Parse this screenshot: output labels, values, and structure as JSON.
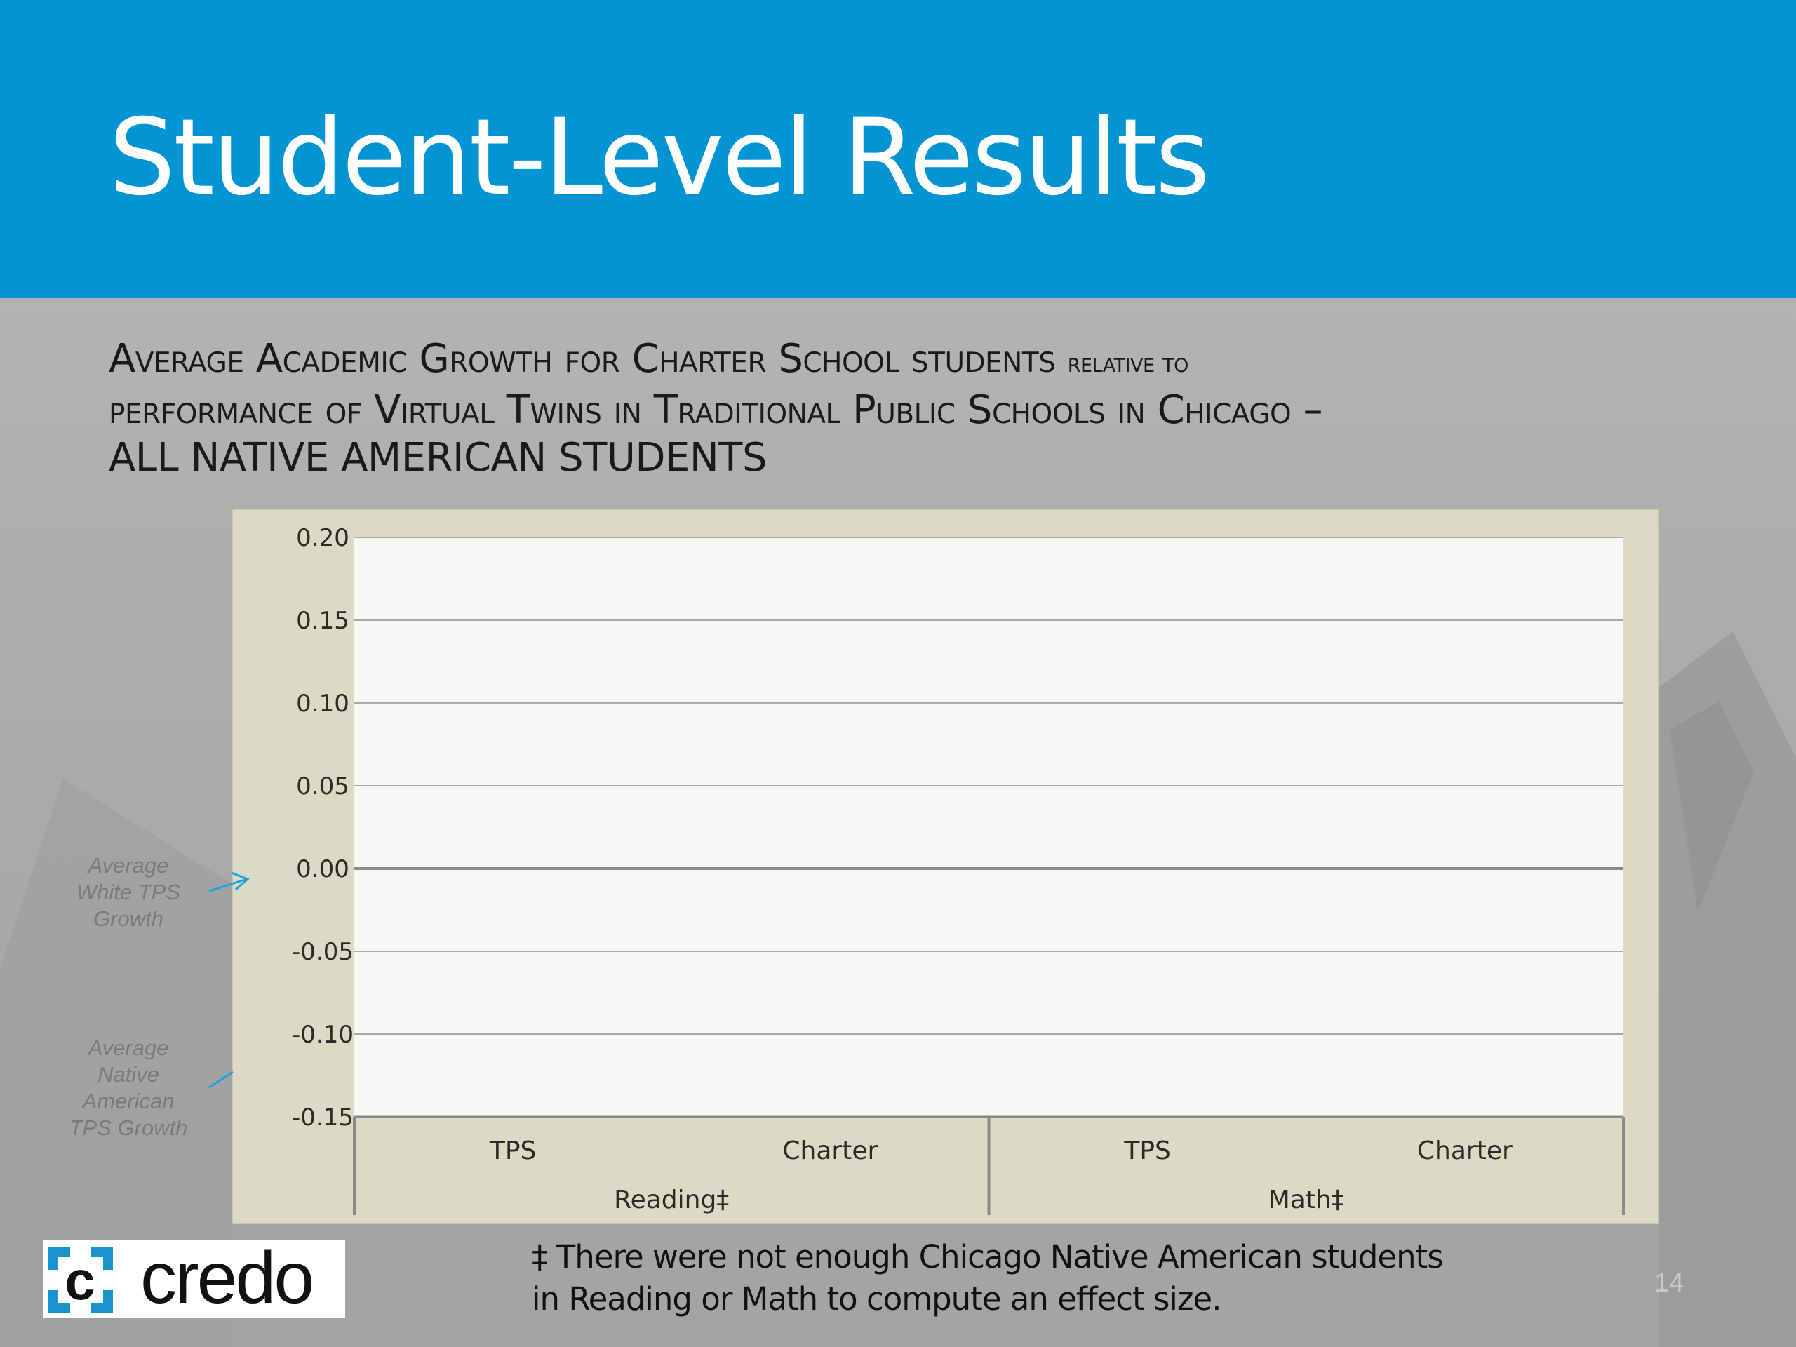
{
  "slide": {
    "title": "Student-Level Results",
    "subtitle_line1_main": "Average Academic Growth for Charter School students ",
    "subtitle_line1_small": "relative to",
    "subtitle_line2": "performance of Virtual Twins in Traditional Public Schools in Chicago –",
    "subtitle_line3": "ALL NATIVE AMERICAN STUDENTS",
    "footnote_line1": "‡ There were not enough Chicago Native American students",
    "footnote_line2": "in Reading or Math to compute an effect size.",
    "page_number": "14",
    "logo_text": "credo"
  },
  "annotations": {
    "white_tps": [
      "Average",
      "White TPS",
      "Growth"
    ],
    "native_tps": [
      "Average",
      "Native",
      "American",
      "TPS Growth"
    ],
    "arrow_color": "#1aa3dc"
  },
  "chart_data": {
    "type": "bar",
    "y_ticks": [
      "0.20",
      "0.15",
      "0.10",
      "0.05",
      "0.00",
      "-0.05",
      "-0.10",
      "-0.15"
    ],
    "y_tick_values": [
      0.2,
      0.15,
      0.1,
      0.05,
      0.0,
      -0.05,
      -0.1,
      -0.15
    ],
    "ylim": [
      -0.15,
      0.2
    ],
    "categories": [
      "TPS",
      "Charter",
      "TPS",
      "Charter"
    ],
    "groups": [
      "Reading‡",
      "Math‡"
    ],
    "values": [
      null,
      null,
      null,
      null
    ],
    "grid": true,
    "legend": "none"
  }
}
